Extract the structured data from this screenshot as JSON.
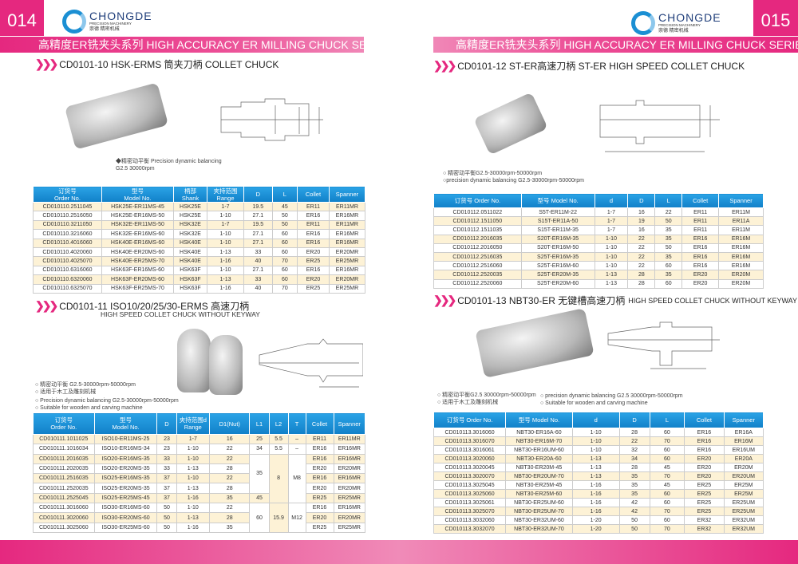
{
  "brand": {
    "name": "CHONGDE",
    "sub": "PRECISION MACHINERY",
    "cn": "崇德 精密机械"
  },
  "colors": {
    "accent": "#e5287f",
    "header_blue": "#1a8fd6",
    "row_alt": "#fdf2d6"
  },
  "left": {
    "page_number": "014",
    "series_title": "高精度ER铣夹头系列   HIGH ACCURACY ER MILLING CHUCK SERIES",
    "section1": {
      "title": "CD0101-10  HSK-ERMS 筒夹刀柄 COLLET CHUCK",
      "notes": [
        "◆精密动平衡 Precision dynamic balancing",
        "G2.5  30000rpm"
      ]
    },
    "section2": {
      "title": "CD0101-11  ISO10/20/25/30-ERMS 高速刀柄",
      "subtitle": "HIGH SPEED COLLET CHUCK WITHOUT KEYWAY",
      "notes": [
        "○ 精密动平衡 G2.5-30000rpm-50000rpm",
        "○ 适用于木工及雕刻机械",
        "○ Precision dynamic balancing G2.5-30000rpm-50000rpm",
        "○ Suitable for wooden and carving machine"
      ]
    }
  },
  "right": {
    "page_number": "015",
    "series_title": "高精度ER铣夹头系列   HIGH ACCURACY ER MILLING CHUCK SERIES",
    "section1": {
      "title": "CD0101-12   ST-ER高速刀柄 ST-ER HIGH SPEED COLLET CHUCK",
      "notes": [
        "○ 精密动平衡G2.5-30000rpm-50000rpm",
        "○precision dynamic balancing G2.5-30000rpm-50000rpm"
      ]
    },
    "section2": {
      "title": "CD0101-13  NBT30-ER 无键槽高速刀柄",
      "title_en": "HIGH SPEED COLLET CHUCK WITHOUT KEYWAY",
      "notes_cn": [
        "○ 精密动平衡G2.5 30000rpm-50000rpm",
        "○ 适用于木工及雕刻机械"
      ],
      "notes_en": [
        "○ precision dynamic balancing G2.5  30000rpm-50000rpm",
        "○ Suitable for wooden and carving machine"
      ]
    }
  },
  "tables": {
    "hsk": {
      "headers": [
        "订货号\nOrder No.",
        "型号\nModel No.",
        "柄部\nShank",
        "夹持范围\nRange",
        "D",
        "L",
        "Collet",
        "Spanner"
      ],
      "rows": [
        [
          "CD010110.2511045",
          "HSK25E-ER11MS-45",
          "HSK25E",
          "1-7",
          "19.5",
          "45",
          "ER11",
          "ER11MR"
        ],
        [
          "CD010110.2516050",
          "HSK25E-ER16MS-50",
          "HSK25E",
          "1-10",
          "27.1",
          "50",
          "ER16",
          "ER16MR"
        ],
        [
          "CD010110.3211050",
          "HSK32E-ER11MS-50",
          "HSK32E",
          "1-7",
          "19.5",
          "50",
          "ER11",
          "ER11MR"
        ],
        [
          "CD010110.3216060",
          "HSK32E-ER16MS-60",
          "HSK32E",
          "1-10",
          "27.1",
          "60",
          "ER16",
          "ER16MR"
        ],
        [
          "CD010110.4016060",
          "HSK40E-ER16MS-60",
          "HSK40E",
          "1-10",
          "27.1",
          "60",
          "ER16",
          "ER16MR"
        ],
        [
          "CD010110.4020060",
          "HSK40E-ER20MS-60",
          "HSK40E",
          "1-13",
          "33",
          "60",
          "ER20",
          "ER20MR"
        ],
        [
          "CD010110.4025070",
          "HSK40E-ER25MS-70",
          "HSK40E",
          "1-16",
          "40",
          "70",
          "ER25",
          "ER25MR"
        ],
        [
          "CD010110.6316060",
          "HSK63F-ER16MS-60",
          "HSK63F",
          "1-10",
          "27.1",
          "60",
          "ER16",
          "ER16MR"
        ],
        [
          "CD010110.6320060",
          "HSK63F-ER20MS-60",
          "HSK63F",
          "1-13",
          "33",
          "60",
          "ER20",
          "ER20MR"
        ],
        [
          "CD010110.6325070",
          "HSK63F-ER25MS-70",
          "HSK63F",
          "1-16",
          "40",
          "70",
          "ER25",
          "ER25MR"
        ]
      ]
    },
    "iso": {
      "headers": [
        "订货号\nOrder No.",
        "型号\nModel No.",
        "D",
        "夹持范围d\nRange",
        "D1(Nut)",
        "L1",
        "L2",
        "T",
        "Collet",
        "Spanner"
      ],
      "rows": [
        [
          "CD010111.1011025",
          "ISO10-ER11MS-25",
          "23",
          "1-7",
          "16",
          "25",
          "5.5",
          "–",
          "ER11",
          "ER11MR"
        ],
        [
          "CD010111.1016034",
          "ISO10-ER16MS-34",
          "23",
          "1-10",
          "22",
          "34",
          "5.5",
          "–",
          "ER16",
          "ER16MR"
        ],
        [
          "CD010111.2016035",
          "ISO20-ER16MS-35",
          "33",
          "1-10",
          "22",
          {
            "v": "35",
            "rs": 4
          },
          {
            "v": "8",
            "rs": 5
          },
          {
            "v": "M8",
            "rs": 5
          },
          "ER16",
          "ER16MR"
        ],
        [
          "CD010111.2020035",
          "ISO20-ER20MS-35",
          "33",
          "1-13",
          "28",
          null,
          null,
          null,
          "ER20",
          "ER20MR"
        ],
        [
          "CD010111.2516035",
          "ISO25-ER16MS-35",
          "37",
          "1-10",
          "22",
          null,
          null,
          null,
          "ER16",
          "ER16MR"
        ],
        [
          "CD010111.2520035",
          "ISO25-ER20MS-35",
          "37",
          "1-13",
          "28",
          null,
          null,
          null,
          "ER20",
          "ER20MR"
        ],
        [
          "CD010111.2525045",
          "ISO25-ER25MS-45",
          "37",
          "1-16",
          "35",
          "45",
          null,
          null,
          "ER25",
          "ER25MR"
        ],
        [
          "CD010111.3016060",
          "ISO30-ER16MS-60",
          "50",
          "1-10",
          "22",
          {
            "v": "60",
            "rs": 3
          },
          {
            "v": "15.9",
            "rs": 3
          },
          {
            "v": "M12",
            "rs": 3
          },
          "ER16",
          "ER16MR"
        ],
        [
          "CD010111.3020060",
          "ISO30-ER20MS-60",
          "50",
          "1-13",
          "28",
          null,
          null,
          null,
          "ER20",
          "ER20MR"
        ],
        [
          "CD010111.3025060",
          "ISO30-ER25MS-60",
          "50",
          "1-16",
          "35",
          null,
          null,
          null,
          "ER25",
          "ER25MR"
        ]
      ]
    },
    "st": {
      "headers": [
        "订货号 Order No.",
        "型号 Model No.",
        "d",
        "D",
        "L",
        "Collet",
        "Spanner"
      ],
      "rows": [
        [
          "CD010112.0511022",
          "S5T-ER11M-22",
          "1-7",
          "16",
          "22",
          "ER11",
          "ER11M"
        ],
        [
          "CD010112.1511050",
          "S15T-ER11A-50",
          "1-7",
          "19",
          "50",
          "ER11",
          "ER11A"
        ],
        [
          "CD010112.1511035",
          "S15T-ER11M-35",
          "1-7",
          "16",
          "35",
          "ER11",
          "ER11M"
        ],
        [
          "CD010112.2016035",
          "S20T-ER16M-35",
          "1-10",
          "22",
          "35",
          "ER16",
          "ER16M"
        ],
        [
          "CD010112.2016050",
          "S20T-ER16M-50",
          "1-10",
          "22",
          "50",
          "ER16",
          "ER16M"
        ],
        [
          "CD010112.2516035",
          "S25T-ER16M-35",
          "1-10",
          "22",
          "35",
          "ER16",
          "ER16M"
        ],
        [
          "CD010112.2516060",
          "S25T-ER16M-60",
          "1-10",
          "22",
          "60",
          "ER16",
          "ER16M"
        ],
        [
          "CD010112.2520035",
          "S25T-ER20M-35",
          "1-13",
          "28",
          "35",
          "ER20",
          "ER20M"
        ],
        [
          "CD010112.2520060",
          "S25T-ER20M-60",
          "1-13",
          "28",
          "60",
          "ER20",
          "ER20M"
        ]
      ]
    },
    "nbt": {
      "headers": [
        "订货号  Order No.",
        "型号  Model No.",
        "d",
        "D",
        "L",
        "Collet",
        "Spanner"
      ],
      "rows": [
        [
          "CD010113.3016060",
          "NBT30-ER16A-60",
          "1-10",
          "28",
          "60",
          "ER16",
          "ER16A"
        ],
        [
          "CD010113.3016070",
          "NBT30-ER16M-70",
          "1-10",
          "22",
          "70",
          "ER16",
          "ER16M"
        ],
        [
          "CD010113.3016061",
          "NBT30-ER16UM-60",
          "1-10",
          "32",
          "60",
          "ER16",
          "ER16UM"
        ],
        [
          "CD010113.3020060",
          "NBT30-ER20A-60",
          "1-13",
          "34",
          "60",
          "ER20",
          "ER20A"
        ],
        [
          "CD010113.3020045",
          "NBT30-ER20M-45",
          "1-13",
          "28",
          "45",
          "ER20",
          "ER20M"
        ],
        [
          "CD010113.3020070",
          "NBT30-ER20UM-70",
          "1-13",
          "35",
          "70",
          "ER20",
          "ER20UM"
        ],
        [
          "CD010113.3025045",
          "NBT30-ER25M-45",
          "1-16",
          "35",
          "45",
          "ER25",
          "ER25M"
        ],
        [
          "CD010113.3025060",
          "NBT30-ER25M-60",
          "1-16",
          "35",
          "60",
          "ER25",
          "ER25M"
        ],
        [
          "CD010113.3025061",
          "NBT30-ER25UM-60",
          "1-16",
          "42",
          "60",
          "ER25",
          "ER25UM"
        ],
        [
          "CD010113.3025070",
          "NBT30-ER25UM-70",
          "1-16",
          "42",
          "70",
          "ER25",
          "ER25UM"
        ],
        [
          "CD010113.3032060",
          "NBT30-ER32UM-60",
          "1-20",
          "50",
          "60",
          "ER32",
          "ER32UM"
        ],
        [
          "CD010113.3032070",
          "NBT30-ER32UM-70",
          "1-20",
          "50",
          "70",
          "ER32",
          "ER32UM"
        ]
      ]
    }
  }
}
